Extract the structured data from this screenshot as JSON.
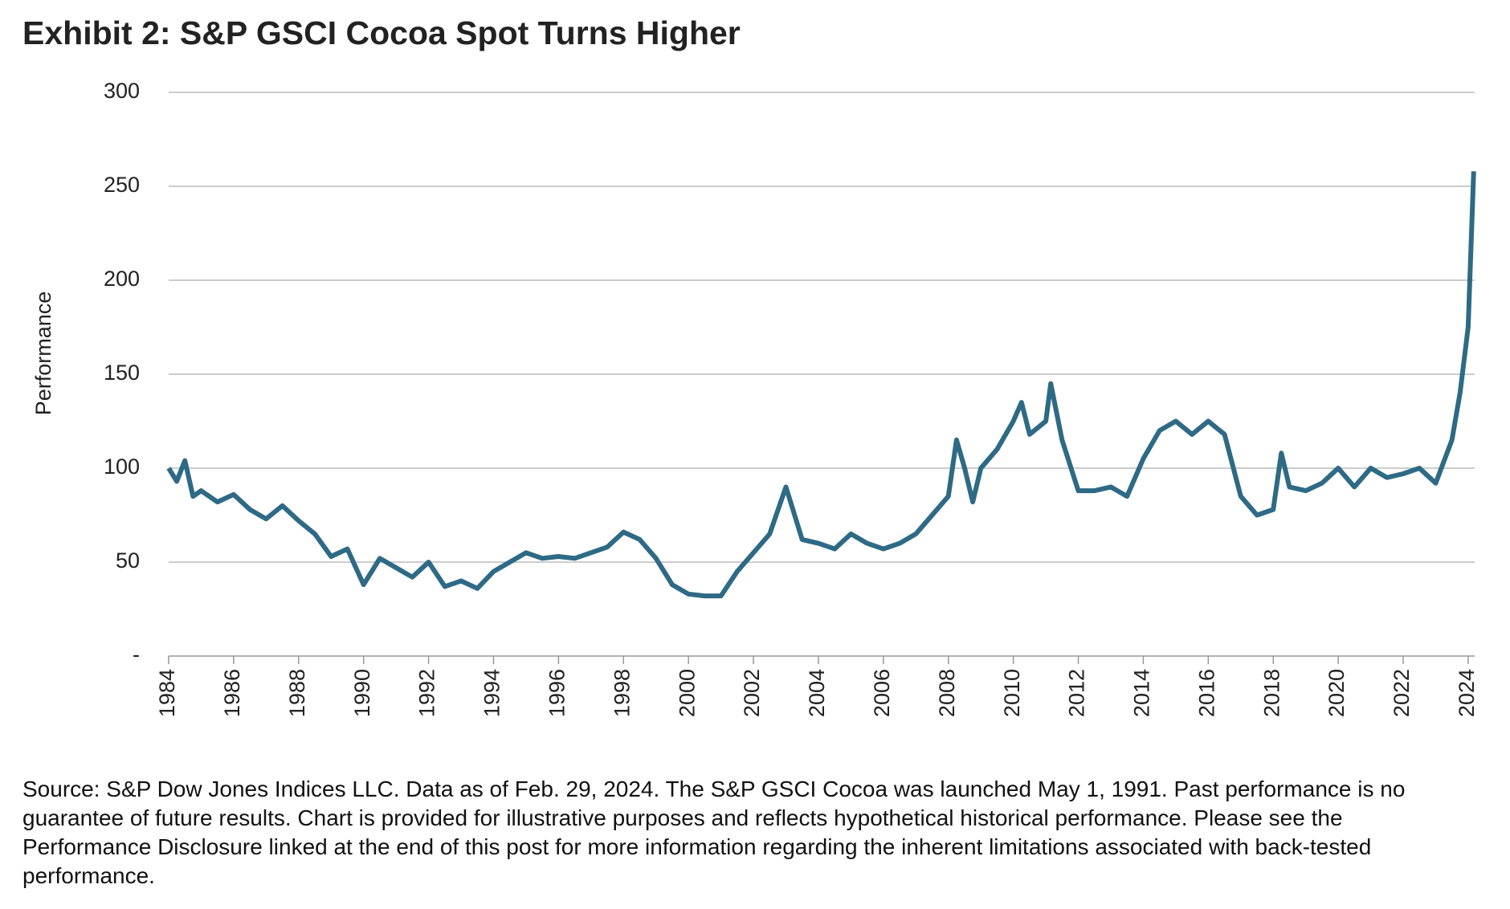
{
  "chart_data": {
    "type": "line",
    "title": "Exhibit 2: S&P GSCI Cocoa Spot Turns Higher",
    "y_label": "Performance",
    "source": "Source: S&P Dow Jones Indices LLC. Data as of Feb. 29, 2024. The S&P GSCI Cocoa was launched May 1, 1991. Past performance is no guarantee of future results. Chart is provided for illustrative purposes and reflects hypothetical historical performance. Please see the Performance Disclosure linked at the end of this post for more information regarding the inherent limitations associated with back-tested performance.",
    "color": "#2e6a85",
    "grid": true,
    "xlim": [
      1984,
      2024.2
    ],
    "ylim": [
      0,
      300
    ],
    "xticks": [
      1984,
      1986,
      1988,
      1990,
      1992,
      1994,
      1996,
      1998,
      2000,
      2002,
      2004,
      2006,
      2008,
      2010,
      2012,
      2014,
      2016,
      2018,
      2020,
      2022,
      2024
    ],
    "yticks": [
      {
        "value": 0,
        "label": "-"
      },
      50,
      100,
      150,
      200,
      250,
      300
    ],
    "x": [
      1984,
      1984.25,
      1984.5,
      1984.75,
      1985,
      1985.5,
      1986,
      1986.5,
      1987,
      1987.5,
      1988,
      1988.5,
      1989,
      1989.5,
      1990,
      1990.5,
      1991,
      1991.5,
      1992,
      1992.5,
      1993,
      1993.5,
      1994,
      1994.5,
      1995,
      1995.5,
      1996,
      1996.5,
      1997,
      1997.5,
      1998,
      1998.5,
      1999,
      1999.5,
      2000,
      2000.5,
      2001,
      2001.5,
      2002,
      2002.5,
      2003,
      2003.5,
      2004,
      2004.5,
      2005,
      2005.5,
      2006,
      2006.5,
      2007,
      2007.5,
      2008,
      2008.25,
      2008.5,
      2008.75,
      2009,
      2009.5,
      2010,
      2010.25,
      2010.5,
      2011,
      2011.15,
      2011.5,
      2012,
      2012.5,
      2013,
      2013.5,
      2014,
      2014.5,
      2015,
      2015.5,
      2016,
      2016.5,
      2017,
      2017.5,
      2018,
      2018.25,
      2018.5,
      2019,
      2019.5,
      2020,
      2020.5,
      2021,
      2021.5,
      2022,
      2022.5,
      2023,
      2023.5,
      2023.75,
      2024,
      2024.17
    ],
    "values": [
      100,
      93,
      104,
      85,
      88,
      82,
      86,
      78,
      73,
      80,
      72,
      65,
      53,
      57,
      38,
      52,
      47,
      42,
      50,
      37,
      40,
      36,
      45,
      50,
      55,
      52,
      53,
      52,
      55,
      58,
      66,
      62,
      52,
      38,
      33,
      32,
      32,
      45,
      55,
      65,
      90,
      62,
      60,
      57,
      65,
      60,
      57,
      60,
      65,
      75,
      85,
      115,
      100,
      82,
      100,
      110,
      125,
      135,
      118,
      125,
      145,
      115,
      88,
      88,
      90,
      85,
      105,
      120,
      125,
      118,
      125,
      118,
      85,
      75,
      78,
      108,
      90,
      88,
      92,
      100,
      90,
      100,
      95,
      97,
      100,
      92,
      115,
      140,
      175,
      258
    ]
  }
}
